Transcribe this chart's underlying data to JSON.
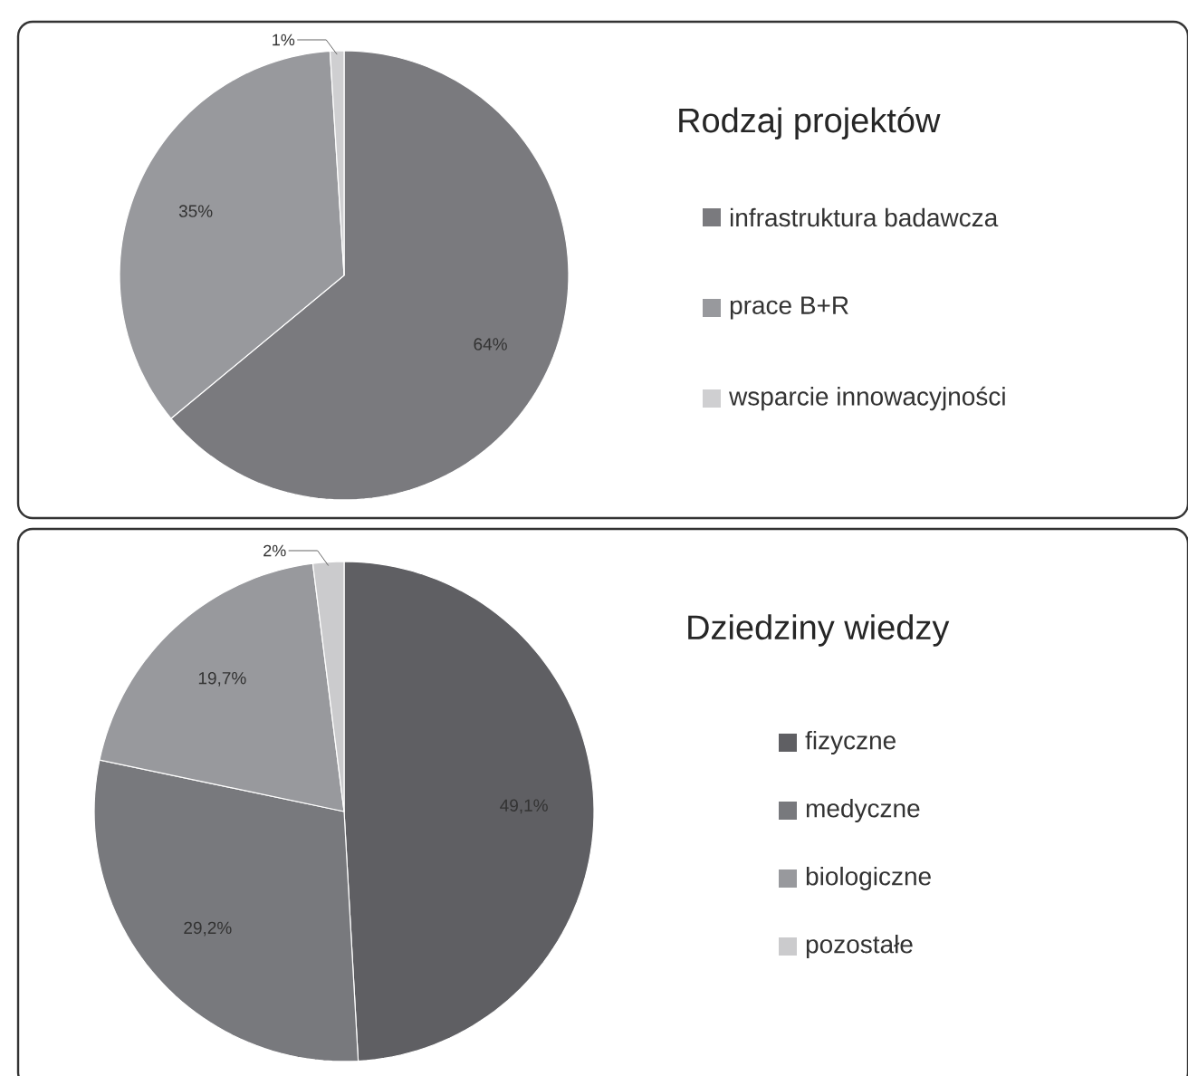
{
  "chart_data": [
    {
      "type": "pie",
      "title": "Rodzaj projektów",
      "categories": [
        "infrastruktura badawcza",
        "prace B+R",
        "wsparcie innowacyjności"
      ],
      "values": [
        64,
        35,
        1
      ],
      "colors": [
        "#7a7a7e",
        "#98999d",
        "#cfcfd1"
      ],
      "value_labels": [
        "64%",
        "35%",
        "1%"
      ],
      "legend": "right"
    },
    {
      "type": "pie",
      "title": "Dziedziny wiedzy",
      "categories": [
        "fizyczne",
        "medyczne",
        "biologiczne",
        "pozostałe"
      ],
      "values": [
        49.1,
        29.2,
        19.7,
        2
      ],
      "colors": [
        "#5f5f63",
        "#78797d",
        "#98999d",
        "#cbcbcd"
      ],
      "value_labels": [
        "49,1%",
        "29,2%",
        "19,7%",
        "2%"
      ],
      "legend": "right"
    }
  ]
}
